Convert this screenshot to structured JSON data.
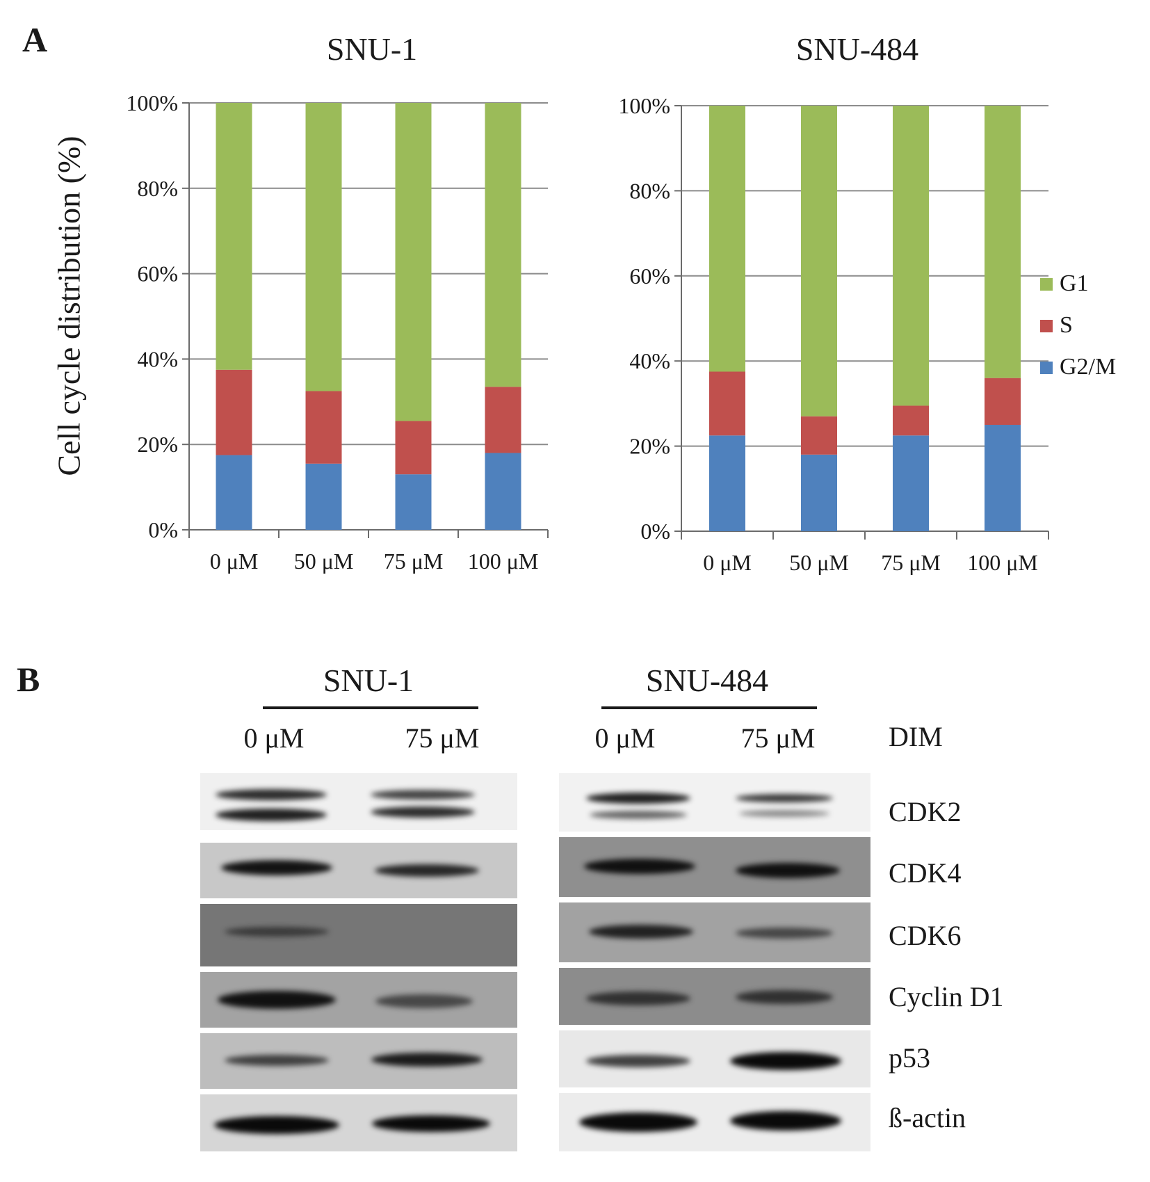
{
  "panel_a_label": "A",
  "panel_b_label": "B",
  "chart_data": [
    {
      "type": "bar",
      "stacked": true,
      "title": "SNU-1",
      "ylabel": "Cell cycle distribution (%)",
      "xlabel": "",
      "yticks": [
        "0%",
        "20%",
        "40%",
        "60%",
        "80%",
        "100%"
      ],
      "ylim": [
        0,
        100
      ],
      "categories": [
        "0 μM",
        "50 μM",
        "75 μM",
        "100 μM"
      ],
      "series": [
        {
          "name": "G2/M",
          "values": [
            17.5,
            15.5,
            13,
            18
          ],
          "color": "#4f81bd"
        },
        {
          "name": "S",
          "values": [
            20,
            17,
            12.5,
            15.5
          ],
          "color": "#c0504d"
        },
        {
          "name": "G1",
          "values": [
            62.5,
            67.5,
            74.5,
            66.5
          ],
          "color": "#9bbb59"
        }
      ],
      "grid": true
    },
    {
      "type": "bar",
      "stacked": true,
      "title": "SNU-484",
      "ylabel": "",
      "xlabel": "",
      "yticks": [
        "0%",
        "20%",
        "40%",
        "60%",
        "80%",
        "100%"
      ],
      "ylim": [
        0,
        100
      ],
      "categories": [
        "0 μM",
        "50 μM",
        "75 μM",
        "100 μM"
      ],
      "series": [
        {
          "name": "G2/M",
          "values": [
            22.5,
            18,
            22.5,
            25
          ],
          "color": "#4f81bd"
        },
        {
          "name": "S",
          "values": [
            15,
            9,
            7,
            11
          ],
          "color": "#c0504d"
        },
        {
          "name": "G1",
          "values": [
            62.5,
            73,
            70.5,
            64
          ],
          "color": "#9bbb59"
        }
      ],
      "grid": true,
      "legend": {
        "placement": "right",
        "entries": [
          {
            "name": "G1",
            "color": "#9bbb59"
          },
          {
            "name": "S",
            "color": "#c0504d"
          },
          {
            "name": "G2/M",
            "color": "#4f81bd"
          }
        ]
      }
    }
  ],
  "western_blot": {
    "groups": [
      {
        "title": "SNU-1",
        "lanes": [
          "0 μM",
          "75 μM"
        ]
      },
      {
        "title": "SNU-484",
        "lanes": [
          "0 μM",
          "75 μM"
        ]
      }
    ],
    "treatment_label": "DIM",
    "proteins": [
      "CDK2",
      "CDK4",
      "CDK6",
      "Cyclin D1",
      "p53",
      "ß-actin"
    ]
  }
}
